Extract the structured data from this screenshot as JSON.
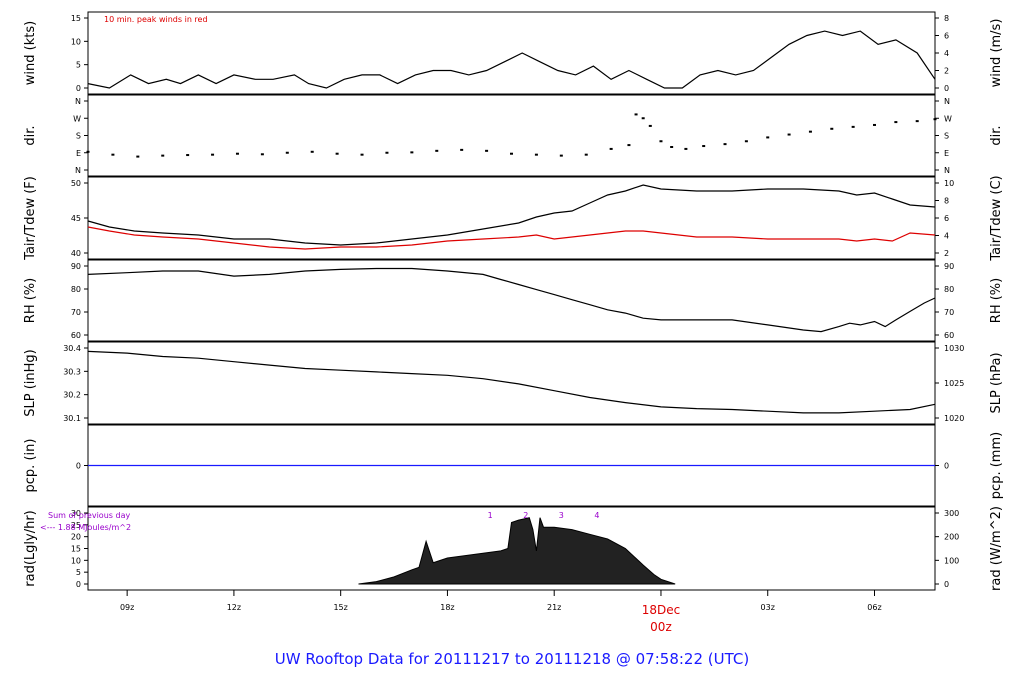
{
  "colors": {
    "line": "#000000",
    "red": "#dd0000",
    "blue": "#1a1aff",
    "purple": "#9900cc",
    "axis": "#000000"
  },
  "footer_title": "UW Rooftop Data for 20111217  to  20111218 @ 07:58:22  (UTC)",
  "time_axis": {
    "ticks": [
      "09z",
      "12z",
      "15z",
      "18z",
      "21z",
      "00z",
      "03z",
      "06z"
    ],
    "highlight_label_top": "18Dec",
    "highlight_label_bottom": "00z"
  },
  "chart_data": [
    {
      "type": "line",
      "panel": "wind",
      "title": "",
      "ylabel_left": "wind (kts)",
      "ylabel_right": "wind (m/s)",
      "annotation": "10 min. peak winds in red",
      "left_ticks": [
        "0",
        "5",
        "10",
        "15"
      ],
      "right_ticks": [
        "0",
        "2",
        "4",
        "6",
        "8"
      ],
      "ylim": [
        0,
        16
      ],
      "series": [
        {
          "name": "wind",
          "x": [
            7.9,
            8.5,
            9.1,
            9.6,
            10.1,
            10.5,
            11.0,
            11.5,
            12.0,
            12.6,
            13.1,
            13.7,
            14.1,
            14.6,
            15.1,
            15.6,
            16.1,
            16.6,
            17.1,
            17.6,
            18.1,
            18.6,
            19.1,
            19.6,
            20.1,
            20.6,
            21.1,
            21.6,
            22.1,
            22.6,
            23.1,
            23.6,
            24.1,
            24.6,
            25.1,
            25.6,
            26.1,
            26.6,
            27.1,
            27.6,
            28.1,
            28.6,
            29.1,
            29.6,
            30.1,
            30.6,
            31.2,
            31.7
          ],
          "values": [
            1,
            0,
            3,
            1,
            2,
            1,
            3,
            1,
            3,
            2,
            2,
            3,
            1,
            0,
            2,
            3,
            3,
            1,
            3,
            4,
            4,
            3,
            4,
            6,
            8,
            6,
            4,
            3,
            5,
            2,
            4,
            2,
            0,
            0,
            3,
            4,
            3,
            4,
            7,
            10,
            12,
            13,
            12,
            13,
            10,
            11,
            8,
            2
          ]
        }
      ]
    },
    {
      "type": "scatter",
      "panel": "dir",
      "ylabel_left": "dir.",
      "ylabel_right": "dir.",
      "left_ticks": [
        "N",
        "E",
        "S",
        "W",
        "N"
      ],
      "right_ticks": [
        "N",
        "E",
        "S",
        "W",
        "N"
      ],
      "ylim": [
        0,
        360
      ],
      "series": [
        {
          "name": "direction",
          "x": [
            7.9,
            8.6,
            9.3,
            10.0,
            10.7,
            11.4,
            12.1,
            12.8,
            13.5,
            14.2,
            14.9,
            15.6,
            16.3,
            17.0,
            17.7,
            18.4,
            19.1,
            19.8,
            20.5,
            21.2,
            21.9,
            22.6,
            23.1,
            23.3,
            23.5,
            23.7,
            24.0,
            24.3,
            24.7,
            25.2,
            25.8,
            26.4,
            27.0,
            27.6,
            28.2,
            28.8,
            29.4,
            30.0,
            30.6,
            31.2,
            31.7
          ],
          "values": [
            95,
            80,
            70,
            75,
            78,
            80,
            85,
            82,
            90,
            95,
            85,
            80,
            90,
            92,
            100,
            105,
            100,
            85,
            80,
            75,
            80,
            110,
            130,
            290,
            270,
            230,
            150,
            120,
            110,
            125,
            135,
            150,
            170,
            185,
            200,
            215,
            225,
            235,
            250,
            255,
            265
          ]
        }
      ]
    },
    {
      "type": "line",
      "panel": "temperature",
      "ylabel_left": "Tair/Tdew (F)",
      "ylabel_right": "Tair/Tdew (C)",
      "left_ticks": [
        "40",
        "45",
        "50"
      ],
      "right_ticks": [
        "2",
        "4",
        "6",
        "8",
        "10"
      ],
      "ylim": [
        35.5,
        53
      ],
      "series": [
        {
          "name": "Tair",
          "x": [
            7.9,
            8.5,
            9.2,
            10.0,
            11.0,
            12.0,
            13.0,
            14.0,
            15.0,
            16.0,
            17.0,
            18.0,
            19.0,
            20.0,
            20.5,
            21.0,
            21.5,
            22.0,
            22.5,
            23.0,
            23.5,
            24.0,
            25.0,
            26.0,
            27.0,
            28.0,
            29.0,
            29.5,
            30.0,
            30.5,
            31.0,
            31.7
          ],
          "values": [
            43.5,
            42,
            41,
            40.5,
            40,
            39,
            39,
            38,
            37.5,
            38,
            39,
            40,
            41.5,
            43,
            44.5,
            45.5,
            46,
            48,
            50,
            51,
            52.5,
            51.5,
            51,
            51,
            51.5,
            51.5,
            51,
            50,
            50.5,
            49,
            47.5,
            47
          ]
        },
        {
          "name": "Tdew",
          "x": [
            7.9,
            8.5,
            9.2,
            10.0,
            11.0,
            12.0,
            13.0,
            14.0,
            15.0,
            16.0,
            17.0,
            18.0,
            19.0,
            20.0,
            20.5,
            21.0,
            21.5,
            22.0,
            22.5,
            23.0,
            23.5,
            24.0,
            25.0,
            26.0,
            27.0,
            28.0,
            29.0,
            29.5,
            30.0,
            30.5,
            31.0,
            31.7
          ],
          "values": [
            42,
            41,
            40,
            39.5,
            39,
            38,
            37,
            36.5,
            37,
            37,
            37.5,
            38.5,
            39,
            39.5,
            40,
            39,
            39.5,
            40,
            40.5,
            41,
            41,
            40.5,
            39.5,
            39.5,
            39,
            39,
            39,
            38.5,
            39,
            38.5,
            40.5,
            40
          ]
        }
      ]
    },
    {
      "type": "line",
      "panel": "rh",
      "ylabel_left": "RH (%)",
      "ylabel_right": "RH (%)",
      "left_ticks": [
        "60",
        "70",
        "80",
        "90"
      ],
      "right_ticks": [
        "60",
        "70",
        "80",
        "90"
      ],
      "ylim": [
        58,
        99
      ],
      "series": [
        {
          "name": "RH",
          "x": [
            7.9,
            9.0,
            10.0,
            11.0,
            12.0,
            13.0,
            14.0,
            15.0,
            16.0,
            17.0,
            18.0,
            19.0,
            19.5,
            20.0,
            20.5,
            21.0,
            21.5,
            22.0,
            22.5,
            23.0,
            23.5,
            24.0,
            25.0,
            26.0,
            27.0,
            28.0,
            28.5,
            29.0,
            29.3,
            29.6,
            30.0,
            30.3,
            30.6,
            31.0,
            31.4,
            31.7
          ],
          "values": [
            94,
            95,
            96,
            96,
            93,
            94,
            96,
            97,
            97.5,
            97.5,
            96,
            94,
            91,
            88,
            85,
            82,
            79,
            76,
            73,
            71,
            68,
            67,
            67,
            67,
            64,
            61,
            60,
            63,
            65,
            64,
            66,
            63,
            67,
            72,
            77,
            80
          ]
        }
      ]
    },
    {
      "type": "line",
      "panel": "slp",
      "ylabel_left": "SLP (inHg)",
      "ylabel_right": "SLP (hPa)",
      "left_ticks": [
        "30.1",
        "30.2",
        "30.3",
        "30.4"
      ],
      "right_ticks": [
        "1020",
        "1025",
        "1030"
      ],
      "ylim": [
        30.06,
        30.47
      ],
      "series": [
        {
          "name": "SLP",
          "x": [
            7.9,
            9.0,
            10.0,
            11.0,
            12.0,
            13.0,
            14.0,
            15.0,
            16.0,
            17.0,
            18.0,
            19.0,
            20.0,
            21.0,
            22.0,
            23.0,
            24.0,
            25.0,
            26.0,
            27.0,
            28.0,
            29.0,
            30.0,
            31.0,
            31.7
          ],
          "values": [
            30.45,
            30.44,
            30.42,
            30.41,
            30.39,
            30.37,
            30.35,
            30.34,
            30.33,
            30.32,
            30.31,
            30.29,
            30.26,
            30.22,
            30.18,
            30.15,
            30.125,
            30.115,
            30.11,
            30.1,
            30.09,
            30.09,
            30.1,
            30.11,
            30.14
          ]
        }
      ]
    },
    {
      "type": "line",
      "panel": "pcp",
      "ylabel_left": "pcp. (in)",
      "ylabel_right": "pcp. (mm)",
      "left_ticks": [
        "0"
      ],
      "right_ticks": [
        "0"
      ],
      "ylim": [
        -1,
        1
      ],
      "series": [
        {
          "name": "precip",
          "x": [
            7.9,
            31.7
          ],
          "values": [
            0,
            0
          ]
        }
      ]
    },
    {
      "type": "area",
      "panel": "rad",
      "ylabel_left": "rad(Lgly/hr)",
      "ylabel_right": "rad (W/m^2)",
      "left_ticks": [
        "0",
        "5",
        "10",
        "15",
        "20",
        "25",
        "30"
      ],
      "right_ticks": [
        "0",
        "100",
        "200",
        "300"
      ],
      "ylim": [
        0,
        30
      ],
      "annotation_lines": [
        "Sum of previous day",
        "<--- 1.88 MJoules/m^2"
      ],
      "hour_markers": [
        "1",
        "2",
        "3",
        "4"
      ],
      "series": [
        {
          "name": "radiation",
          "x": [
            15.5,
            16.0,
            16.5,
            17.0,
            17.2,
            17.4,
            17.6,
            18.0,
            18.5,
            19.0,
            19.5,
            19.7,
            19.8,
            20.0,
            20.3,
            20.4,
            20.5,
            20.6,
            20.7,
            21.0,
            21.5,
            22.0,
            22.5,
            23.0,
            23.5,
            23.8,
            24.0,
            24.4
          ],
          "values": [
            0,
            1,
            3,
            6,
            7,
            18,
            9,
            11,
            12,
            13,
            14,
            15,
            26,
            27,
            28,
            23,
            14,
            28,
            24,
            24,
            23,
            21,
            19,
            15,
            8,
            4,
            2,
            0
          ]
        }
      ]
    }
  ]
}
